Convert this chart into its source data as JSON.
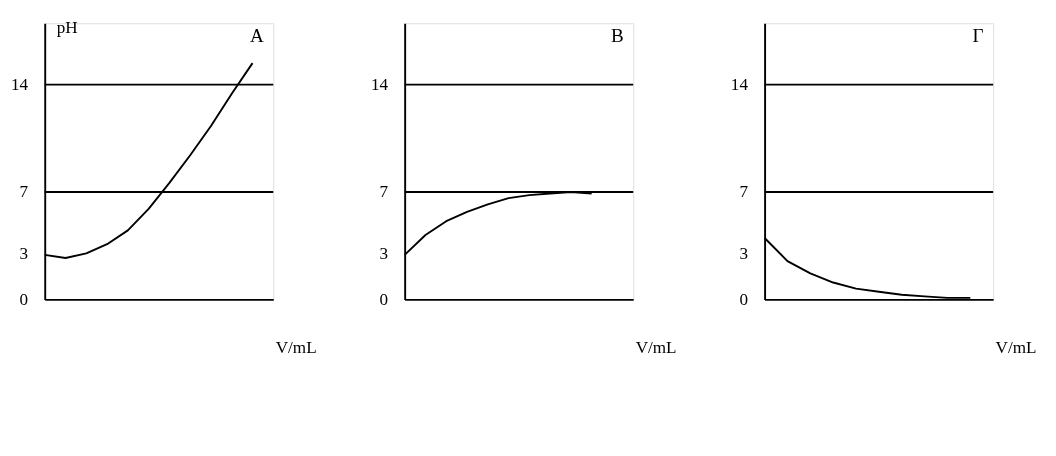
{
  "chart_data": [
    {
      "type": "line",
      "title": "A",
      "ylabel": "pH",
      "xlabel": "V/mL",
      "categories": [
        null,
        null,
        null,
        null,
        null,
        null,
        null,
        null,
        null,
        null,
        null,
        null
      ],
      "series": [
        {
          "color": "#000000",
          "values": [
            2.9,
            2.7,
            3.0,
            3.6,
            4.5,
            5.9,
            7.6,
            9.4,
            11.3,
            13.4,
            15.4,
            null
          ]
        }
      ],
      "ylim": [
        0,
        18
      ],
      "yticks": [
        0,
        3,
        7,
        14
      ],
      "tick_labels": "y",
      "marker": "none",
      "line_style": "solid",
      "ref_lines": [
        {
          "axis": "y",
          "value": 7,
          "color": "#000000"
        },
        {
          "axis": "y",
          "value": 14,
          "color": "#000000"
        }
      ]
    },
    {
      "type": "line",
      "title": "B",
      "xlabel": "V/mL",
      "categories": [
        null,
        null,
        null,
        null,
        null,
        null,
        null,
        null,
        null,
        null,
        null,
        null
      ],
      "series": [
        {
          "color": "#000000",
          "values": [
            2.9,
            4.2,
            5.1,
            5.7,
            6.2,
            6.6,
            6.8,
            6.9,
            7.0,
            6.9,
            null,
            null
          ]
        }
      ],
      "ylim": [
        0,
        18
      ],
      "yticks": [
        0,
        3,
        7,
        14
      ],
      "tick_labels": "y",
      "marker": "none",
      "line_style": "solid",
      "ref_lines": [
        {
          "axis": "y",
          "value": 7,
          "color": "#000000"
        },
        {
          "axis": "y",
          "value": 14,
          "color": "#000000"
        }
      ]
    },
    {
      "type": "line",
      "title": "Γ",
      "xlabel": "V/mL",
      "categories": [
        null,
        null,
        null,
        null,
        null,
        null,
        null,
        null,
        null,
        null,
        null
      ],
      "series": [
        {
          "color": "#000000",
          "values": [
            4.0,
            2.5,
            1.7,
            1.1,
            0.7,
            0.5,
            0.3,
            0.2,
            0.1,
            0.1,
            null
          ]
        }
      ],
      "ylim": [
        0,
        18
      ],
      "yticks": [
        0,
        3,
        7,
        14
      ],
      "tick_labels": "y",
      "marker": "none",
      "line_style": "solid",
      "ref_lines": [
        {
          "axis": "y",
          "value": 7,
          "color": "#000000"
        },
        {
          "axis": "y",
          "value": 14,
          "color": "#000000"
        }
      ]
    }
  ]
}
